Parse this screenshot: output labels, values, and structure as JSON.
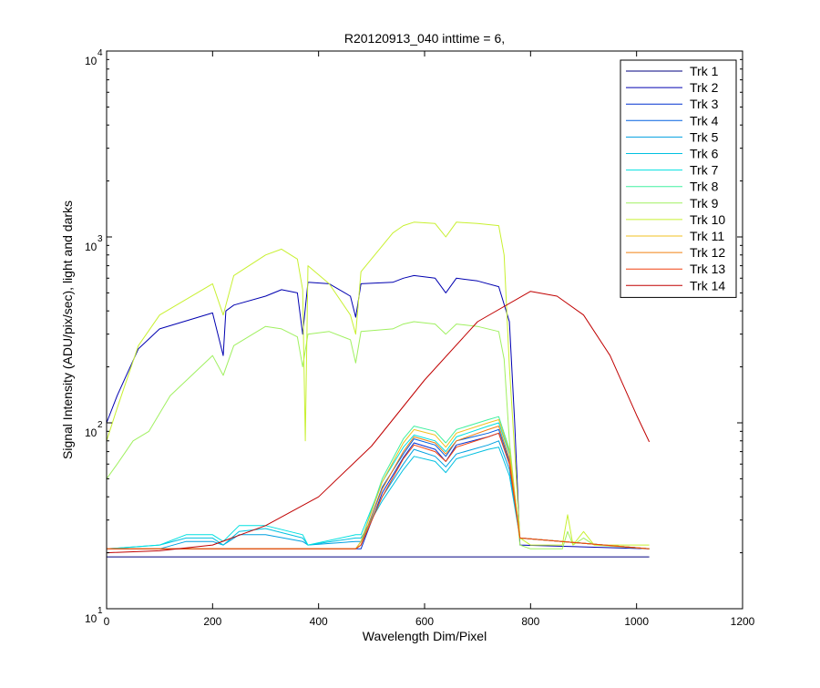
{
  "chart_data": {
    "type": "line",
    "title": "R20120913_040 inttime = 6,",
    "xlabel": "Wavelength Dim/Pixel",
    "ylabel": "Signal Intensity (ADU/pix/sec), light and darks",
    "xlim": [
      0,
      1200
    ],
    "ylim": [
      10,
      10000
    ],
    "yscale": "log",
    "xticks": [
      "0",
      "200",
      "400",
      "600",
      "800",
      "1000",
      "1200"
    ],
    "yticks": [
      {
        "base": "10",
        "exp": "1"
      },
      {
        "base": "10",
        "exp": "2"
      },
      {
        "base": "10",
        "exp": "3"
      },
      {
        "base": "10",
        "exp": "4"
      }
    ],
    "grid": false,
    "legend_position": "top-right",
    "series": [
      {
        "name": "Trk 1",
        "color": "#000080",
        "x": [
          0,
          200,
          400,
          470,
          480,
          600,
          700,
          750,
          760,
          800,
          1024
        ],
        "y": [
          19,
          19,
          19,
          19,
          19,
          19,
          19,
          19,
          19,
          19,
          19
        ]
      },
      {
        "name": "Trk 2",
        "color": "#0000b0",
        "x": [
          0,
          20,
          60,
          100,
          200,
          220,
          225,
          240,
          300,
          330,
          360,
          370,
          380,
          420,
          460,
          470,
          480,
          540,
          560,
          580,
          620,
          640,
          660,
          700,
          740,
          760,
          770,
          780,
          1024
        ],
        "y": [
          100,
          140,
          250,
          320,
          390,
          230,
          400,
          430,
          480,
          520,
          500,
          300,
          570,
          560,
          480,
          370,
          560,
          570,
          600,
          620,
          600,
          500,
          600,
          580,
          540,
          350,
          100,
          22,
          21
        ]
      },
      {
        "name": "Trk 3",
        "color": "#0030d0",
        "x": [
          0,
          200,
          470,
          480,
          520,
          560,
          580,
          620,
          640,
          660,
          720,
          740,
          760,
          780,
          1024
        ],
        "y": [
          21,
          21,
          21,
          21,
          42,
          65,
          78,
          72,
          62,
          76,
          84,
          88,
          60,
          24,
          21
        ]
      },
      {
        "name": "Trk 4",
        "color": "#0060e0",
        "x": [
          0,
          200,
          470,
          480,
          520,
          560,
          580,
          620,
          640,
          660,
          720,
          740,
          760,
          780,
          1024
        ],
        "y": [
          21,
          21,
          21,
          22,
          45,
          68,
          82,
          76,
          66,
          80,
          88,
          92,
          62,
          24,
          21
        ]
      },
      {
        "name": "Trk 5",
        "color": "#00a0e0",
        "x": [
          0,
          100,
          150,
          200,
          220,
          250,
          300,
          370,
          380,
          470,
          480,
          520,
          560,
          580,
          620,
          640,
          660,
          720,
          740,
          760,
          780,
          1024
        ],
        "y": [
          21,
          21,
          23,
          23,
          22,
          25,
          25,
          23,
          22,
          23,
          23,
          40,
          60,
          72,
          66,
          58,
          68,
          76,
          80,
          56,
          24,
          21
        ]
      },
      {
        "name": "Trk 6",
        "color": "#00c0e0",
        "x": [
          0,
          100,
          150,
          200,
          220,
          250,
          300,
          370,
          380,
          470,
          480,
          520,
          560,
          580,
          620,
          640,
          660,
          720,
          740,
          760,
          780,
          1024
        ],
        "y": [
          21,
          22,
          24,
          24,
          22,
          26,
          27,
          24,
          22,
          24,
          24,
          38,
          56,
          66,
          62,
          54,
          64,
          72,
          74,
          52,
          24,
          21
        ]
      },
      {
        "name": "Trk 7",
        "color": "#00e0e0",
        "x": [
          0,
          100,
          150,
          200,
          220,
          250,
          300,
          370,
          380,
          470,
          480,
          520,
          560,
          580,
          620,
          640,
          660,
          720,
          740,
          760,
          780,
          1024
        ],
        "y": [
          21,
          22,
          25,
          25,
          23,
          28,
          28,
          25,
          22,
          25,
          25,
          48,
          74,
          86,
          80,
          70,
          84,
          96,
          100,
          68,
          24,
          21
        ]
      },
      {
        "name": "Trk 8",
        "color": "#40f0a0",
        "x": [
          0,
          200,
          470,
          480,
          520,
          560,
          580,
          620,
          640,
          660,
          720,
          740,
          760,
          780,
          1024
        ],
        "y": [
          21,
          21,
          21,
          23,
          50,
          82,
          96,
          90,
          78,
          92,
          104,
          108,
          72,
          24,
          21
        ]
      },
      {
        "name": "Trk 9",
        "color": "#a0f060",
        "x": [
          0,
          20,
          50,
          80,
          120,
          200,
          220,
          240,
          300,
          330,
          360,
          370,
          380,
          420,
          460,
          470,
          480,
          540,
          560,
          580,
          620,
          640,
          660,
          700,
          740,
          750,
          760,
          780,
          800,
          860,
          870,
          880,
          900,
          920,
          1024
        ],
        "y": [
          50,
          60,
          80,
          90,
          140,
          230,
          180,
          260,
          330,
          320,
          290,
          200,
          300,
          310,
          280,
          210,
          310,
          320,
          340,
          350,
          340,
          300,
          340,
          330,
          310,
          220,
          80,
          22,
          21,
          21,
          26,
          22,
          24,
          22,
          21
        ]
      },
      {
        "name": "Trk 10",
        "color": "#c8f030",
        "x": [
          0,
          20,
          60,
          100,
          200,
          220,
          240,
          300,
          330,
          360,
          370,
          375,
          380,
          420,
          460,
          470,
          480,
          540,
          560,
          580,
          620,
          640,
          660,
          700,
          740,
          750,
          760,
          780,
          800,
          860,
          870,
          880,
          900,
          920,
          1024
        ],
        "y": [
          80,
          120,
          260,
          380,
          560,
          380,
          620,
          800,
          860,
          760,
          520,
          80,
          700,
          560,
          380,
          300,
          650,
          1050,
          1150,
          1200,
          1180,
          1000,
          1200,
          1180,
          1150,
          800,
          200,
          24,
          22,
          22,
          32,
          22,
          26,
          22,
          22
        ]
      },
      {
        "name": "Trk 11",
        "color": "#f0c020",
        "x": [
          0,
          200,
          470,
          480,
          520,
          560,
          580,
          620,
          640,
          660,
          720,
          740,
          760,
          780,
          1024
        ],
        "y": [
          21,
          21,
          21,
          23,
          48,
          78,
          92,
          86,
          74,
          88,
          100,
          104,
          70,
          24,
          21
        ]
      },
      {
        "name": "Trk 12",
        "color": "#f08010",
        "x": [
          0,
          200,
          470,
          480,
          520,
          560,
          580,
          620,
          640,
          660,
          720,
          740,
          760,
          780,
          1024
        ],
        "y": [
          21,
          21,
          21,
          22,
          44,
          70,
          84,
          78,
          68,
          80,
          92,
          96,
          64,
          24,
          21
        ]
      },
      {
        "name": "Trk 13",
        "color": "#f04010",
        "x": [
          0,
          200,
          470,
          480,
          520,
          560,
          580,
          620,
          640,
          660,
          720,
          740,
          760,
          780,
          1024
        ],
        "y": [
          21,
          21,
          21,
          22,
          40,
          64,
          76,
          70,
          62,
          74,
          84,
          88,
          60,
          24,
          21
        ]
      },
      {
        "name": "Trk 14",
        "color": "#c00000",
        "x": [
          0,
          100,
          200,
          300,
          400,
          500,
          600,
          700,
          800,
          850,
          900,
          950,
          1000,
          1024
        ],
        "y": [
          20,
          20.5,
          22,
          28,
          40,
          75,
          170,
          350,
          510,
          480,
          380,
          230,
          110,
          79
        ]
      }
    ]
  }
}
